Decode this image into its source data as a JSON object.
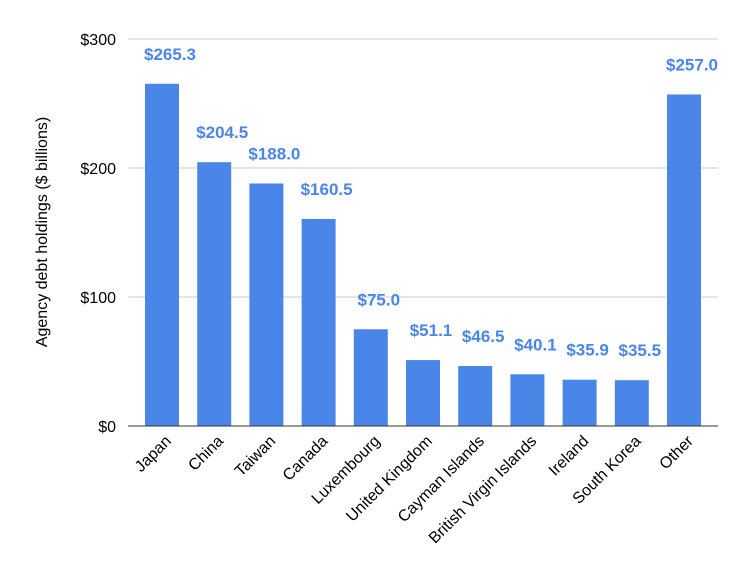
{
  "chart_data": {
    "type": "bar",
    "title": "",
    "xlabel": "",
    "ylabel": "Agency debt holdings ($ billions)",
    "categories": [
      "Japan",
      "China",
      "Taiwan",
      "Canada",
      "Luxembourg",
      "United Kingdom",
      "Cayman Islands",
      "British Virgin Islands",
      "Ireland",
      "South Korea",
      "Other"
    ],
    "values": [
      265.3,
      204.5,
      188.0,
      160.5,
      75.0,
      51.1,
      46.5,
      40.1,
      35.9,
      35.5,
      257.0
    ],
    "data_labels": [
      "$265.3",
      "$204.5",
      "$188.0",
      "$160.5",
      "$75.0",
      "$51.1",
      "$46.5",
      "$40.1",
      "$35.9",
      "$35.5",
      "$257.0"
    ],
    "ylim": [
      0,
      300
    ],
    "yticks": [
      0,
      100,
      200,
      300
    ],
    "ytick_labels": [
      "$0",
      "$100",
      "$200",
      "$300"
    ],
    "grid": true,
    "legend": "none",
    "colors": {
      "bar": "#4a86e8",
      "label": "#4a86e8",
      "grid": "#cccccc",
      "axis": "#333333"
    }
  }
}
